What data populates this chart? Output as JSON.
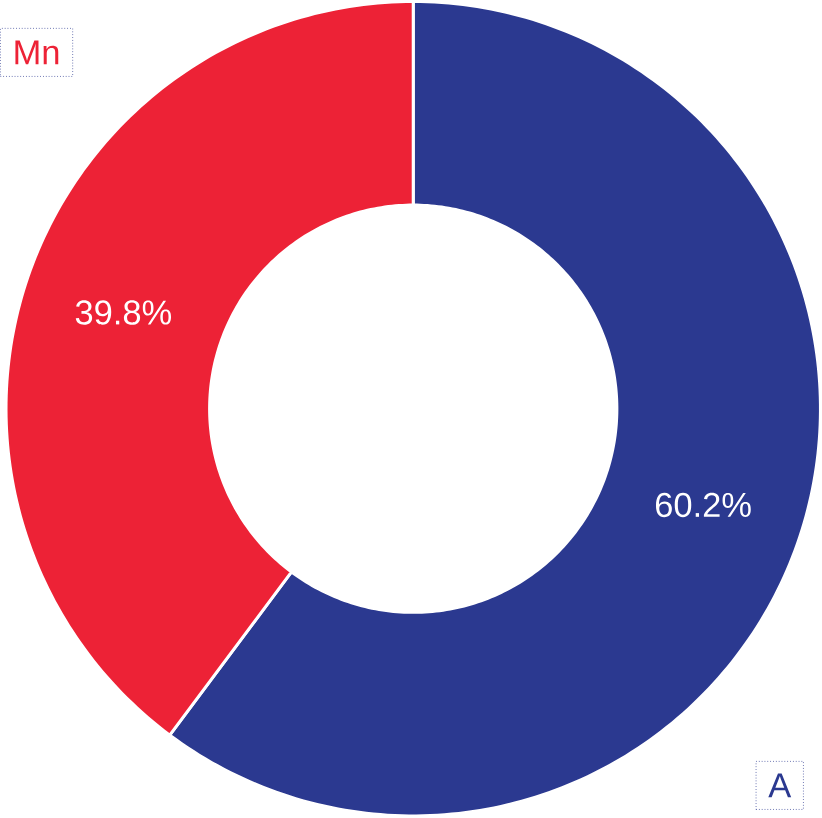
{
  "chart_data": {
    "type": "donut",
    "categories": [
      "A",
      "Mn"
    ],
    "values": [
      60.2,
      39.8
    ],
    "colors": [
      "#2b3990",
      "#ed2236"
    ],
    "value_labels": [
      "60.2%",
      "39.8%"
    ]
  }
}
